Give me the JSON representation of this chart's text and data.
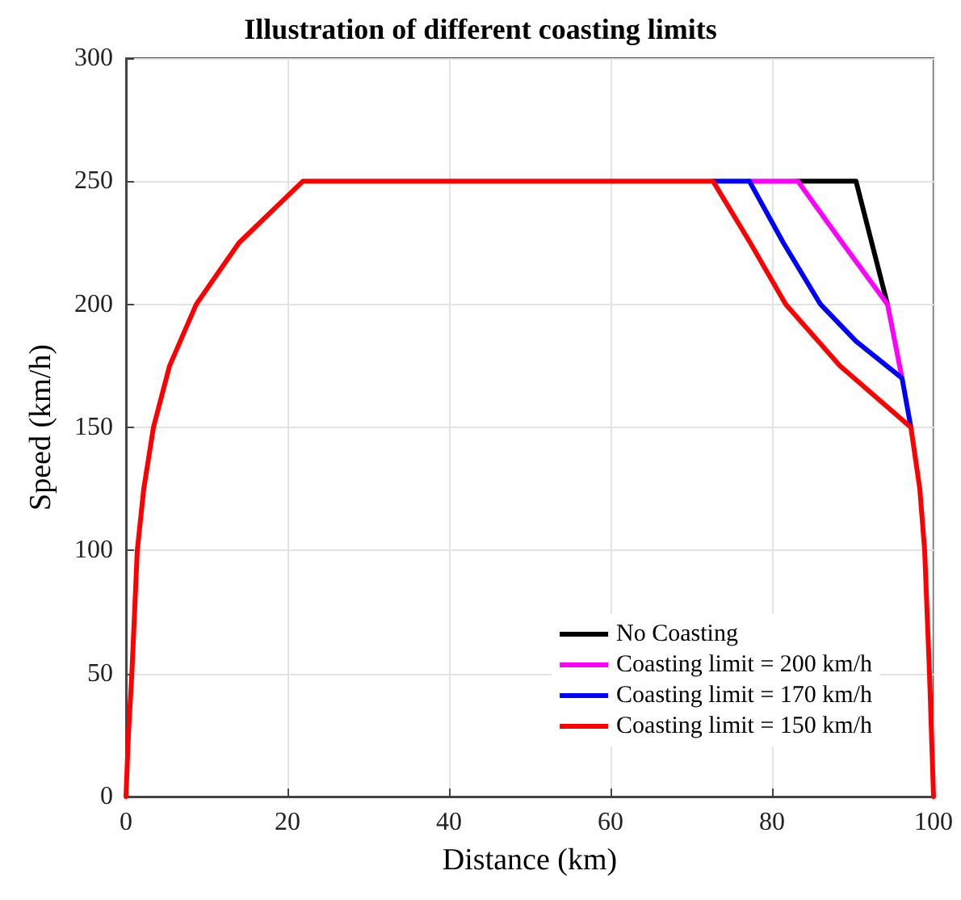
{
  "chart_data": {
    "type": "line",
    "title": "Illustration of different coasting limits",
    "xlabel": "Distance (km)",
    "ylabel": "Speed (km/h)",
    "xlim": [
      0,
      100
    ],
    "xticks": [
      0,
      20,
      40,
      60,
      80,
      100
    ],
    "ylim": [
      0,
      300
    ],
    "yticks": [
      0,
      50,
      100,
      150,
      200,
      250,
      300
    ],
    "grid": true,
    "legend": "bottom right",
    "marker": "none",
    "line_style": "solid",
    "series": [
      {
        "name": "No Coasting",
        "color": "#000000",
        "x": [
          83.2,
          90.4,
          94.3
        ],
        "values": [
          250,
          250,
          200
        ]
      },
      {
        "name": "Coasting limit = 200 km/h",
        "color": "#ff00ff",
        "x": [
          77.2,
          83.2,
          88.7,
          94.3,
          96.1
        ],
        "values": [
          250,
          250,
          225,
          200,
          170
        ]
      },
      {
        "name": "Coasting limit = 170 km/h",
        "color": "#0000ff",
        "x": [
          72.7,
          77.2,
          81.4,
          86,
          90.4,
          96.1,
          97.2
        ],
        "values": [
          250,
          250,
          225,
          200,
          185,
          170,
          150
        ]
      },
      {
        "name": "Coasting limit = 150 km/h",
        "color": "#ff0000",
        "x": [
          0,
          0.3,
          0.73,
          1.4,
          2.2,
          3.4,
          5.4,
          8.7,
          14,
          21.9,
          72.7,
          77.3,
          81.7,
          88.4,
          97.2,
          98.3,
          98.9,
          99.5,
          100
        ],
        "values": [
          0,
          25,
          50,
          100,
          125,
          150,
          175,
          200,
          225,
          250,
          250,
          225,
          200,
          175,
          150,
          125,
          100,
          50,
          0
        ]
      }
    ]
  }
}
